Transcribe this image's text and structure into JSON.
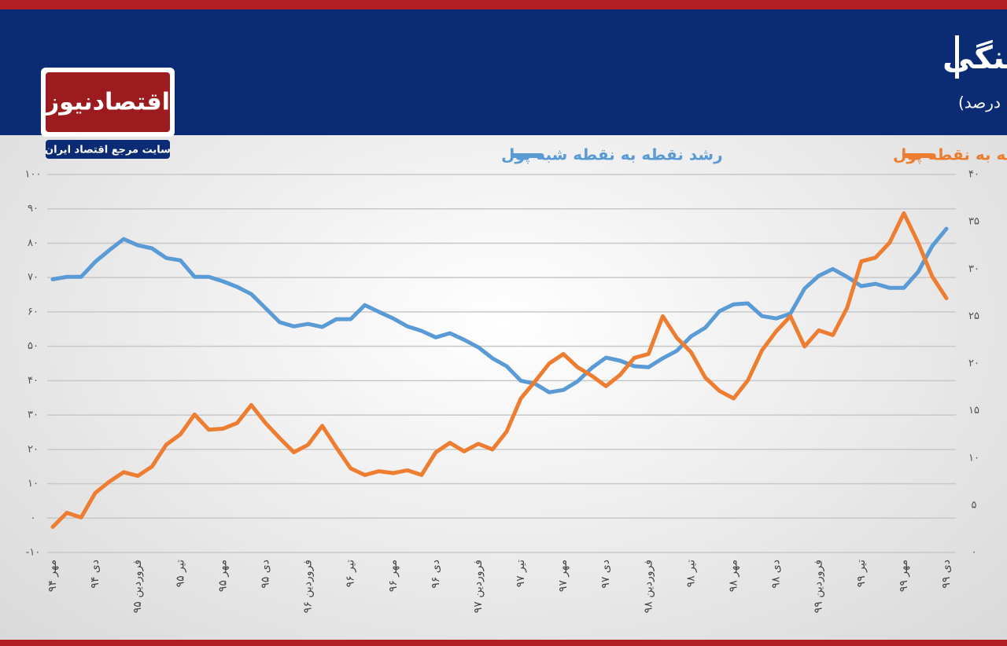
{
  "logo": {
    "name": "اقتصادنیوز",
    "tagline": "سایت مرجع اقتصاد ایران"
  },
  "chart_data": {
    "type": "line",
    "title": "رشد نقطه به نقطه متغیرهای نقدینگی",
    "subtitle": "(واحد: درصد)",
    "categories": [
      "مهر ۹۴",
      null,
      null,
      "دی ۹۴",
      null,
      null,
      "فروردین ۹۵",
      null,
      null,
      "تیر ۹۵",
      null,
      null,
      "مهر ۹۵",
      null,
      null,
      "دی ۹۵",
      null,
      null,
      "فروردین ۹۶",
      null,
      null,
      "تیر ۹۶",
      null,
      null,
      "مهر ۹۶",
      null,
      null,
      "دی ۹۶",
      null,
      null,
      "فروردین ۹۷",
      null,
      null,
      "تیر ۹۷",
      null,
      null,
      "مهر ۹۷",
      null,
      null,
      "دی ۹۷",
      null,
      null,
      "فروردین ۹۸",
      null,
      null,
      "تیر ۹۸",
      null,
      null,
      "مهر ۹۸",
      null,
      null,
      "دی ۹۸",
      null,
      null,
      "فروردین ۹۹",
      null,
      null,
      "تیر ۹۹",
      null,
      null,
      "مهر ۹۹",
      null,
      null,
      "دی ۹۹"
    ],
    "series": [
      {
        "name": "رشد نقطه به نقطه شبه پول",
        "color": "#5b9bd5",
        "axis": "y",
        "values": [
          69.5,
          70.2,
          70.2,
          74.6,
          78,
          81.2,
          79.4,
          78.5,
          75.7,
          75,
          70.2,
          70.2,
          68.9,
          67.3,
          65.2,
          61.1,
          57,
          55.8,
          56.5,
          55.6,
          57.9,
          57.9,
          62,
          60,
          58.1,
          55.8,
          54.5,
          52.6,
          53.8,
          51.9,
          49.7,
          46.5,
          44.2,
          40,
          39.1,
          36.6,
          37.3,
          39.8,
          43.7,
          46.7,
          45.8,
          44.2,
          43.9,
          46.5,
          48.7,
          52.9,
          55.4,
          60.2,
          62.2,
          62.5,
          58.8,
          58.1,
          59.5,
          66.8,
          70.5,
          72.5,
          70.2,
          67.5,
          68.2,
          67,
          67,
          71.6,
          79.2,
          84.2
        ]
      },
      {
        "name": "رشد نقطه به نقطه پول",
        "color": "#ed7d31",
        "axis": "y2",
        "values": [
          2.7,
          4.2,
          3.7,
          6.3,
          7.5,
          8.5,
          8.1,
          9.1,
          11.4,
          12.5,
          14.6,
          13,
          13.1,
          13.7,
          15.6,
          13.7,
          12.1,
          10.6,
          11.4,
          13.4,
          11.1,
          8.9,
          8.2,
          8.6,
          8.4,
          8.7,
          8.2,
          10.6,
          11.6,
          10.7,
          11.5,
          10.9,
          12.8,
          16.3,
          18.1,
          20,
          21,
          19.6,
          18.7,
          17.6,
          18.8,
          20.6,
          21,
          25,
          22.7,
          21.2,
          18.5,
          17.1,
          16.3,
          18.2,
          21.4,
          23.4,
          25,
          21.8,
          23.5,
          23,
          25.9,
          30.8,
          31.2,
          32.8,
          35.9,
          32.8,
          29.2,
          26.9
        ]
      }
    ],
    "ylim": [
      -10,
      100
    ],
    "yticks": [
      {
        "value": -10,
        "label": "-۱۰"
      },
      {
        "value": 0,
        "label": "۰"
      },
      {
        "value": 10,
        "label": "۱۰"
      },
      {
        "value": 20,
        "label": "۲۰"
      },
      {
        "value": 30,
        "label": "۳۰"
      },
      {
        "value": 40,
        "label": "۴۰"
      },
      {
        "value": 50,
        "label": "۵۰"
      },
      {
        "value": 60,
        "label": "۶۰"
      },
      {
        "value": 70,
        "label": "۷۰"
      },
      {
        "value": 80,
        "label": "۸۰"
      },
      {
        "value": 90,
        "label": "۹۰"
      },
      {
        "value": 100,
        "label": "۱۰۰"
      }
    ],
    "y2lim": [
      0,
      40
    ],
    "y2ticks": [
      {
        "value": 0,
        "label": "۰"
      },
      {
        "value": 5,
        "label": "۵"
      },
      {
        "value": 10,
        "label": "۱۰"
      },
      {
        "value": 15,
        "label": "۱۵"
      },
      {
        "value": 20,
        "label": "۲۰"
      },
      {
        "value": 25,
        "label": "۲۵"
      },
      {
        "value": 30,
        "label": "۳۰"
      },
      {
        "value": 35,
        "label": "۳۵"
      },
      {
        "value": 40,
        "label": "۴۰"
      }
    ],
    "grid": true
  }
}
